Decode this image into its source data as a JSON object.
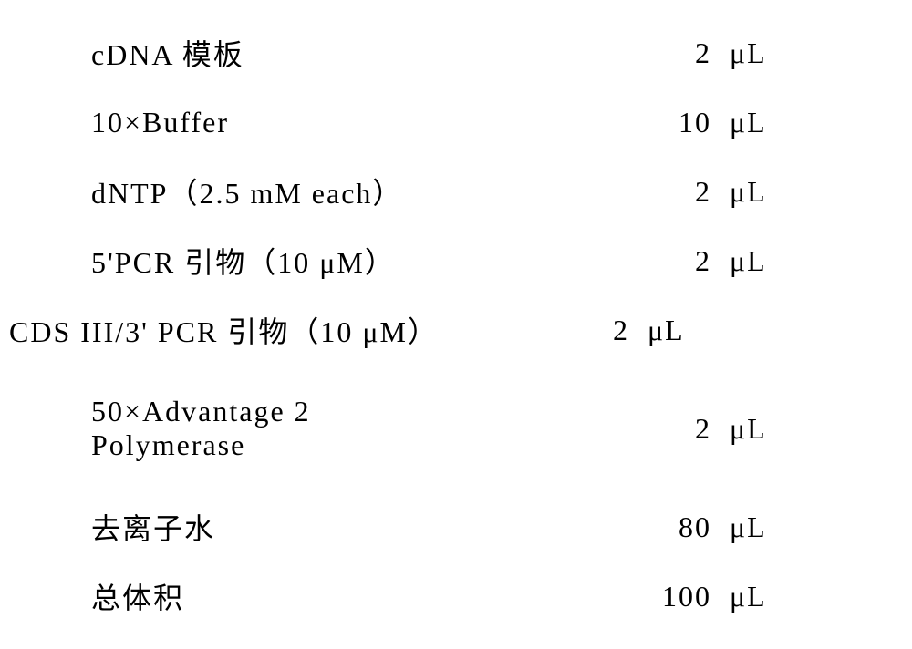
{
  "table": {
    "font_family": "SimSun / Songti",
    "font_size_pt": 24,
    "text_color": "#000000",
    "background_color": "#ffffff",
    "rows": [
      {
        "label": "cDNA 模板",
        "value": "2",
        "unit": "μL",
        "indent": true,
        "double": false
      },
      {
        "label": "10×Buffer",
        "value": "10",
        "unit": "μL",
        "indent": true,
        "double": false
      },
      {
        "label": "dNTP（2.5 mM each）",
        "value": "2",
        "unit": "μL",
        "indent": true,
        "double": false
      },
      {
        "label": "5'PCR 引物（10 μM）",
        "value": "2",
        "unit": "μL",
        "indent": true,
        "double": false
      },
      {
        "label": "CDS III/3' PCR 引物（10 μM）",
        "value": "2",
        "unit": "μL",
        "indent": false,
        "double": false
      },
      {
        "label": "50×Advantage 2\nPolymerase",
        "value": "2",
        "unit": "μL",
        "indent": true,
        "double": true
      },
      {
        "label": "去离子水",
        "value": "80",
        "unit": "μL",
        "indent": true,
        "double": false
      },
      {
        "label": "总体积",
        "value": "100",
        "unit": "μL",
        "indent": true,
        "double": false
      }
    ]
  }
}
